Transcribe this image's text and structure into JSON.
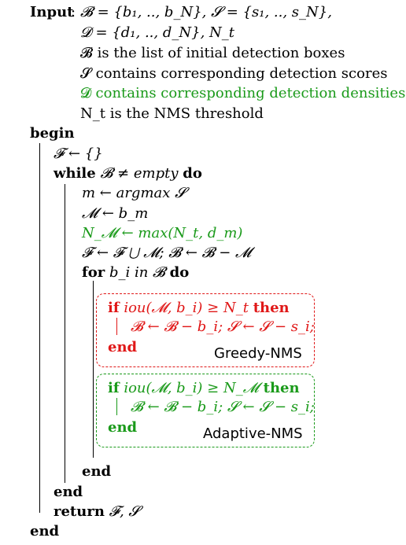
{
  "input": {
    "keyword": "Input",
    "colon": ":",
    "line1": "𝓑 = {b₁, .., b_N}, 𝓢 = {s₁, .., s_N},",
    "line2": "𝓓 = {d₁, .., d_N}, N_t",
    "desc_b": "𝓑 is the list of initial detection boxes",
    "desc_s": "𝓢 contains corresponding detection scores",
    "desc_d": "𝓓 contains corresponding detection densities",
    "desc_nt": "N_t is the NMS threshold"
  },
  "body": {
    "begin": "begin",
    "f_init": "𝓕 ← {}",
    "while_kw": "while",
    "while_cond": "𝓑 ≠",
    "empty": "empty",
    "do": "do",
    "m_line": "m ← argmax 𝓢",
    "M_line": "𝓜 ← b_m",
    "NM_line": "N_𝓜 ← max(N_t, d_m)",
    "F_line": "𝓕 ← 𝓕 ⋃ 𝓜; 𝓑 ← 𝓑 − 𝓜",
    "for_kw": "for",
    "for_var": "b_i in 𝓑",
    "greedy": {
      "if_kw": "if",
      "cond": "iou(𝓜, b_i) ≥ N_t",
      "then": "then",
      "stmt": "𝓑 ← 𝓑 − b_i; 𝓢 ← 𝓢 − s_i;",
      "end": "end",
      "label": "Greedy-NMS"
    },
    "adaptive": {
      "if_kw": "if",
      "cond": "iou(𝓜, b_i) ≥ N_𝓜",
      "then": "then",
      "stmt": "𝓑 ← 𝓑 − b_i; 𝓢 ← 𝓢 − s_i;",
      "end": "end",
      "label": "Adaptive-NMS"
    },
    "end_for": "end",
    "end_while": "end",
    "return_kw": "return",
    "return_val": "𝓕, 𝓢",
    "end_begin": "end"
  },
  "colors": {
    "green": "#1a9a1a",
    "red": "#e01818"
  }
}
